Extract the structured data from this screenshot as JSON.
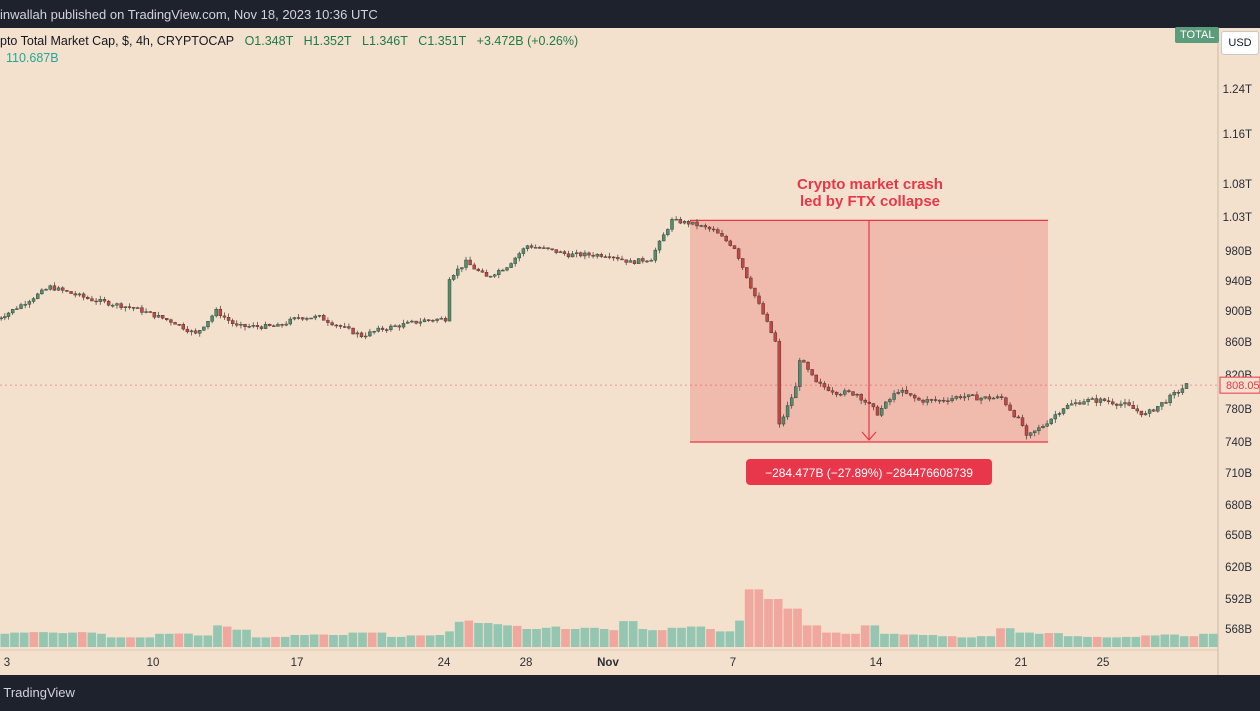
{
  "header": {
    "attribution": "inwallah published on TradingView.com, Nov 18, 2023 10:36 UTC"
  },
  "legend": {
    "title": "pto Total Market Cap, $, 4h, CRYPTOCAP",
    "open": "O1.348T",
    "high": "H1.352T",
    "low": "L1.346T",
    "close": "C1.351T",
    "change": "+3.472B (+0.26%)",
    "volume": "110.687B"
  },
  "badges": {
    "total": "TOTAL",
    "currency": "USD"
  },
  "annotation": {
    "title_line1": "Crypto market crash",
    "title_line2": "led by FTX collapse",
    "measure": "−284.477B (−27.89%) −284476608739"
  },
  "price_label": "808.05",
  "footer": {
    "brand": "TradingView"
  },
  "colors": {
    "up": "#5a9b7c",
    "down": "#e2554d",
    "background": "#f3e1cd",
    "accent": "#e8374b"
  },
  "chart_data": {
    "type": "candlestick",
    "interval": "4h",
    "y_axis_ticks": [
      "1.24T",
      "1.16T",
      "1.08T",
      "1.03T",
      "980B",
      "940B",
      "900B",
      "860B",
      "820B",
      "780B",
      "740B",
      "710B",
      "680B",
      "650B",
      "620B",
      "592B",
      "568B"
    ],
    "x_axis_ticks": [
      "3",
      "10",
      "17",
      "24",
      "28",
      "Nov",
      "7",
      "14",
      "21",
      "25"
    ],
    "price_path_B": [
      {
        "date": "Oct 2",
        "close": 890
      },
      {
        "date": "Oct 3",
        "close": 898
      },
      {
        "date": "Oct 5",
        "close": 932
      },
      {
        "date": "Oct 7",
        "close": 915
      },
      {
        "date": "Oct 9",
        "close": 904
      },
      {
        "date": "Oct 11",
        "close": 885
      },
      {
        "date": "Oct 12",
        "close": 870
      },
      {
        "date": "Oct 13",
        "close": 900
      },
      {
        "date": "Oct 14",
        "close": 880
      },
      {
        "date": "Oct 16",
        "close": 880
      },
      {
        "date": "Oct 17",
        "close": 892
      },
      {
        "date": "Oct 18",
        "close": 892
      },
      {
        "date": "Oct 19",
        "close": 880
      },
      {
        "date": "Oct 20",
        "close": 868
      },
      {
        "date": "Oct 21",
        "close": 877
      },
      {
        "date": "Oct 23",
        "close": 888
      },
      {
        "date": "Oct 24",
        "close": 890
      },
      {
        "date": "Oct 24",
        "close": 945
      },
      {
        "date": "Oct 25",
        "close": 965
      },
      {
        "date": "Oct 26",
        "close": 945
      },
      {
        "date": "Oct 27",
        "close": 960
      },
      {
        "date": "Oct 28",
        "close": 988
      },
      {
        "date": "Oct 29",
        "close": 982
      },
      {
        "date": "Oct 30",
        "close": 975
      },
      {
        "date": "Nov 1",
        "close": 975
      },
      {
        "date": "Nov 2",
        "close": 965
      },
      {
        "date": "Nov 3",
        "close": 970
      },
      {
        "date": "Nov 4",
        "close": 1025
      },
      {
        "date": "Nov 5",
        "close": 1020
      },
      {
        "date": "Nov 6",
        "close": 1010
      },
      {
        "date": "Nov 7",
        "close": 985
      },
      {
        "date": "Nov 8",
        "close": 920
      },
      {
        "date": "Nov 9",
        "close": 860
      },
      {
        "date": "Nov 9",
        "close": 760
      },
      {
        "date": "Nov 10",
        "close": 805
      },
      {
        "date": "Nov 10",
        "close": 840
      },
      {
        "date": "Nov 11",
        "close": 810
      },
      {
        "date": "Nov 12",
        "close": 800
      },
      {
        "date": "Nov 13",
        "close": 798
      },
      {
        "date": "Nov 14",
        "close": 775
      },
      {
        "date": "Nov 15",
        "close": 802
      },
      {
        "date": "Nov 16",
        "close": 790
      },
      {
        "date": "Nov 17",
        "close": 790
      },
      {
        "date": "Nov 18",
        "close": 795
      },
      {
        "date": "Nov 19",
        "close": 793
      },
      {
        "date": "Nov 20",
        "close": 793
      },
      {
        "date": "Nov 21",
        "close": 760
      },
      {
        "date": "Nov 21",
        "close": 745
      },
      {
        "date": "Nov 22",
        "close": 760
      },
      {
        "date": "Nov 23",
        "close": 782
      },
      {
        "date": "Nov 24",
        "close": 790
      },
      {
        "date": "Nov 25",
        "close": 790
      },
      {
        "date": "Nov 26",
        "close": 785
      },
      {
        "date": "Nov 27",
        "close": 773
      },
      {
        "date": "Nov 28",
        "close": 790
      },
      {
        "date": "Nov 29",
        "close": 808
      }
    ],
    "volume_bars_relative": [
      0.55,
      0.6,
      0.6,
      0.62,
      0.62,
      0.6,
      0.58,
      0.6,
      0.62,
      0.6,
      0.55,
      0.4,
      0.4,
      0.4,
      0.4,
      0.4,
      0.55,
      0.55,
      0.56,
      0.56,
      0.48,
      0.48,
      0.9,
      0.85,
      0.72,
      0.72,
      0.4,
      0.4,
      0.42,
      0.42,
      0.5,
      0.5,
      0.52,
      0.52,
      0.5,
      0.5,
      0.6,
      0.6,
      0.6,
      0.6,
      0.42,
      0.42,
      0.48,
      0.48,
      0.48,
      0.5,
      0.65,
      1.05,
      1.1,
      1.0,
      1.0,
      0.95,
      0.9,
      0.88,
      0.75,
      0.75,
      0.8,
      0.85,
      0.75,
      0.75,
      0.8,
      0.8,
      0.75,
      0.7,
      1.08,
      1.08,
      0.75,
      0.7,
      0.7,
      0.8,
      0.8,
      0.85,
      0.85,
      0.75,
      0.65,
      0.65,
      1.1,
      2.4,
      2.4,
      2.0,
      2.0,
      1.6,
      1.6,
      0.9,
      0.9,
      0.6,
      0.6,
      0.55,
      0.55,
      0.9,
      0.9,
      0.55,
      0.55,
      0.52,
      0.52,
      0.5,
      0.5,
      0.45,
      0.45,
      0.4,
      0.4,
      0.45,
      0.45,
      0.78,
      0.78,
      0.6,
      0.6,
      0.55,
      0.58,
      0.58,
      0.45,
      0.45,
      0.42,
      0.42,
      0.4,
      0.4,
      0.42,
      0.42,
      0.48,
      0.48,
      0.52,
      0.52,
      0.45,
      0.45,
      0.55,
      0.55
    ],
    "measured_range": {
      "from_B": 1025,
      "to_B": 740,
      "change_B": -284.477,
      "change_pct": -27.89
    },
    "current_price_B": 808.05
  }
}
